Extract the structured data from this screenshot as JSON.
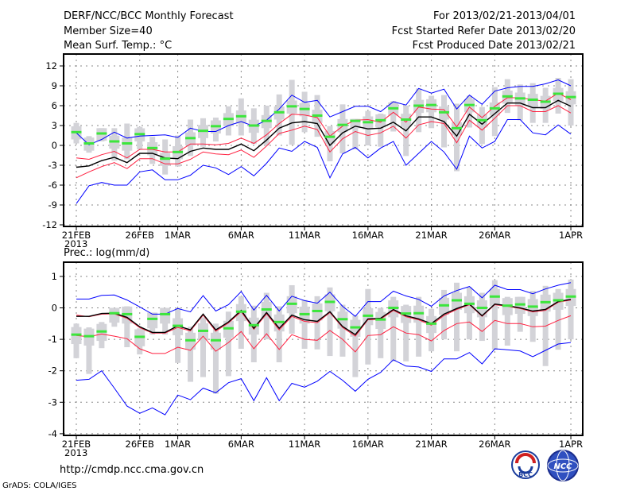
{
  "header": {
    "title": "DERF/NCC/BCC Monthly Forecast",
    "member_size": "Member Size=40",
    "period": "For 2013/02/21-2013/04/01",
    "started": "Fcst Started Refer Date 2013/02/20",
    "produced": "Fcst Produced Date 2013/02/21"
  },
  "footer": {
    "url": "http://cmdp.ncc.cma.gov.cn",
    "credit": "GrADS: COLA/IGES",
    "logo_bcc": "BCC",
    "logo_ncc": "NCC"
  },
  "colors": {
    "green": "#3ce63c",
    "gray": "#d3d3d8",
    "red": "#ff2040",
    "blue": "#0000ff",
    "black": "#000000"
  },
  "chart_data": [
    {
      "type": "line",
      "title": "Mean Surf. Temp.: °C",
      "ylim": [
        -12,
        12
      ],
      "yticks": [
        -12,
        -9,
        -6,
        -3,
        0,
        3,
        6,
        9,
        12
      ],
      "ytick_labels": [
        "-12",
        "-9",
        "-6",
        "-3",
        "0",
        "3",
        "6",
        "9",
        "12"
      ],
      "xticks": [
        {
          "day": 0,
          "label": "21FEB",
          "sub": "2013"
        },
        {
          "day": 5,
          "label": "26FEB"
        },
        {
          "day": 8,
          "label": "1MAR"
        },
        {
          "day": 13,
          "label": "6MAR"
        },
        {
          "day": 18,
          "label": "11MAR"
        },
        {
          "day": 23,
          "label": "16MAR"
        },
        {
          "day": 28,
          "label": "21MAR"
        },
        {
          "day": 33,
          "label": "26MAR"
        },
        {
          "day": 39,
          "label": "1APR"
        }
      ],
      "grid": true,
      "series": [
        {
          "name": "blue-upper",
          "color": "blue",
          "values": [
            1.9,
            0.1,
            0.9,
            2.0,
            1.1,
            1.4,
            1.5,
            1.6,
            1.2,
            2.6,
            2.1,
            2.1,
            3.0,
            3.6,
            2.9,
            3.8,
            5.5,
            7.6,
            6.5,
            6.8,
            4.3,
            5.1,
            5.9,
            5.9,
            5.1,
            6.6,
            6.1,
            8.6,
            7.9,
            8.5,
            5.5,
            7.6,
            6.2,
            8.2,
            8.7,
            8.9,
            8.9,
            9.3,
            9.9,
            9.0
          ]
        },
        {
          "name": "red-upper",
          "color": "red",
          "values": [
            -1.9,
            -2.1,
            -1.4,
            -0.9,
            -1.9,
            -0.6,
            -0.6,
            -1.0,
            -1.0,
            0.2,
            0.2,
            0.1,
            0.3,
            1.1,
            0.3,
            1.6,
            3.3,
            4.7,
            4.6,
            4.2,
            1.4,
            2.9,
            3.8,
            3.9,
            3.5,
            5.0,
            3.5,
            5.8,
            5.5,
            5.4,
            2.8,
            5.8,
            4.2,
            5.9,
            7.2,
            7.2,
            6.9,
            6.7,
            7.9,
            6.9
          ]
        },
        {
          "name": "ensemble-mean",
          "color": "black",
          "values": [
            -3.3,
            -3.1,
            -2.3,
            -1.8,
            -2.6,
            -1.2,
            -1.2,
            -1.9,
            -2.0,
            -0.9,
            -0.4,
            -0.6,
            -0.6,
            0.2,
            -0.8,
            0.8,
            2.6,
            3.4,
            3.6,
            3.3,
            0.0,
            1.9,
            2.9,
            2.5,
            2.6,
            3.5,
            2.2,
            4.3,
            4.3,
            3.6,
            1.4,
            4.7,
            3.2,
            4.8,
            6.4,
            6.4,
            5.7,
            5.7,
            6.8,
            5.9
          ]
        },
        {
          "name": "red-lower",
          "color": "red",
          "values": [
            -4.9,
            -4.0,
            -3.2,
            -2.6,
            -3.5,
            -2.0,
            -2.0,
            -2.8,
            -2.8,
            -2.1,
            -1.0,
            -1.3,
            -1.4,
            -0.7,
            -1.8,
            -0.1,
            1.8,
            2.3,
            2.9,
            2.4,
            -1.0,
            1.0,
            2.1,
            1.5,
            1.9,
            2.9,
            1.1,
            3.1,
            3.6,
            3.3,
            0.4,
            3.8,
            2.3,
            4.1,
            6.0,
            6.0,
            5.1,
            5.1,
            6.0,
            4.9
          ]
        },
        {
          "name": "blue-lower",
          "color": "blue",
          "values": [
            -8.8,
            -6.1,
            -5.6,
            -6.0,
            -6.0,
            -4.0,
            -3.7,
            -5.2,
            -5.2,
            -4.5,
            -3.0,
            -3.4,
            -4.4,
            -3.2,
            -4.6,
            -2.7,
            -0.4,
            -0.9,
            0.6,
            -0.3,
            -4.9,
            -1.3,
            -0.3,
            -1.9,
            -0.4,
            0.6,
            -3.0,
            -1.2,
            0.6,
            -1.0,
            -3.6,
            1.4,
            -0.4,
            0.6,
            3.9,
            3.9,
            1.9,
            1.6,
            3.1,
            1.7
          ]
        }
      ],
      "green_marks": [
        2.0,
        0.3,
        1.8,
        0.6,
        0.3,
        1.7,
        -0.4,
        -2.0,
        -1.0,
        1.1,
        2.2,
        2.9,
        4.0,
        4.4,
        3.0,
        3.7,
        5.0,
        5.9,
        5.5,
        4.5,
        1.3,
        3.1,
        3.7,
        3.5,
        3.8,
        5.6,
        3.9,
        6.0,
        6.1,
        5.0,
        2.6,
        6.1,
        3.8,
        5.6,
        7.4,
        7.1,
        6.9,
        6.6,
        7.8,
        7.3
      ],
      "whisker_low": [
        0.3,
        -1.1,
        0.6,
        -2.3,
        -2.1,
        -0.6,
        -2.8,
        -4.4,
        -3.2,
        -1.6,
        -0.2,
        0.6,
        1.5,
        1.5,
        0.2,
        0.0,
        1.5,
        0.1,
        2.0,
        1.3,
        -2.4,
        -1.2,
        -0.6,
        0.0,
        -0.2,
        2.1,
        -1.6,
        2.0,
        2.6,
        -0.3,
        -3.9,
        2.7,
        0.2,
        1.4,
        4.9,
        3.8,
        3.4,
        3.4,
        4.8,
        3.0
      ],
      "whisker_high": [
        3.4,
        1.4,
        2.6,
        2.6,
        3.3,
        2.8,
        1.3,
        0.9,
        1.5,
        3.9,
        4.1,
        4.2,
        5.9,
        7.1,
        5.6,
        6.0,
        7.7,
        9.9,
        8.1,
        7.6,
        2.9,
        6.2,
        4.0,
        5.2,
        4.8,
        6.7,
        6.0,
        8.6,
        7.5,
        7.6,
        6.3,
        7.5,
        5.8,
        8.8,
        10.0,
        9.2,
        9.4,
        8.7,
        10.2,
        10.0
      ]
    },
    {
      "type": "line",
      "title": "Prec.: log(mm/d)",
      "ylim": [
        -4,
        1.5
      ],
      "yticks": [
        -4,
        -3,
        -2,
        -1,
        0,
        1
      ],
      "ytick_labels": [
        "-4",
        "-3",
        "-2",
        "-1",
        "0",
        "1"
      ],
      "xticks": [
        {
          "day": 0,
          "label": "21FEB",
          "sub": "2013"
        },
        {
          "day": 5,
          "label": "26FEB"
        },
        {
          "day": 8,
          "label": "1MAR"
        },
        {
          "day": 13,
          "label": "6MAR"
        },
        {
          "day": 18,
          "label": "11MAR"
        },
        {
          "day": 23,
          "label": "16MAR"
        },
        {
          "day": 28,
          "label": "21MAR"
        },
        {
          "day": 33,
          "label": "26MAR"
        },
        {
          "day": 39,
          "label": "1APR"
        }
      ],
      "grid": true,
      "series": [
        {
          "name": "blue-upper",
          "color": "blue",
          "values": [
            0.28,
            0.28,
            0.4,
            0.41,
            0.25,
            0.03,
            -0.2,
            -0.2,
            -0.02,
            -0.13,
            0.39,
            -0.1,
            0.1,
            0.52,
            -0.07,
            0.4,
            -0.1,
            0.37,
            0.23,
            0.15,
            0.5,
            0.05,
            -0.27,
            0.2,
            0.2,
            0.53,
            0.38,
            0.27,
            0.05,
            0.38,
            0.55,
            0.68,
            0.32,
            0.72,
            0.58,
            0.58,
            0.45,
            0.6,
            0.72,
            0.8
          ]
        },
        {
          "name": "red-upper",
          "color": "red",
          "values": [
            -0.23,
            -0.28,
            -0.2,
            -0.19,
            -0.33,
            -0.63,
            -0.8,
            -0.8,
            -0.62,
            -0.73,
            -0.23,
            -0.74,
            -0.48,
            -0.12,
            -0.68,
            -0.19,
            -0.7,
            -0.27,
            -0.43,
            -0.47,
            -0.15,
            -0.62,
            -0.9,
            -0.38,
            -0.36,
            -0.08,
            -0.28,
            -0.38,
            -0.55,
            -0.24,
            -0.05,
            0.1,
            -0.27,
            0.1,
            0.05,
            -0.02,
            -0.13,
            -0.08,
            0.18,
            0.25
          ]
        },
        {
          "name": "ensemble-mean",
          "color": "black",
          "values": [
            -0.27,
            -0.27,
            -0.18,
            -0.17,
            -0.3,
            -0.6,
            -0.78,
            -0.78,
            -0.57,
            -0.7,
            -0.2,
            -0.7,
            -0.45,
            -0.08,
            -0.65,
            -0.15,
            -0.65,
            -0.23,
            -0.38,
            -0.43,
            -0.12,
            -0.59,
            -0.85,
            -0.35,
            -0.33,
            -0.05,
            -0.25,
            -0.35,
            -0.5,
            -0.2,
            -0.02,
            0.12,
            -0.25,
            0.12,
            0.07,
            0.0,
            -0.1,
            -0.05,
            0.2,
            0.27
          ]
        },
        {
          "name": "red-lower",
          "color": "red",
          "values": [
            -0.88,
            -0.92,
            -0.83,
            -0.9,
            -0.98,
            -1.3,
            -1.45,
            -1.45,
            -1.25,
            -1.35,
            -0.9,
            -1.38,
            -1.1,
            -0.75,
            -1.3,
            -0.82,
            -1.32,
            -0.85,
            -1.0,
            -1.03,
            -0.72,
            -1.0,
            -1.4,
            -0.88,
            -0.85,
            -0.6,
            -0.8,
            -0.85,
            -1.05,
            -0.72,
            -0.5,
            -0.45,
            -0.75,
            -0.4,
            -0.5,
            -0.5,
            -0.6,
            -0.58,
            -0.4,
            -0.25
          ]
        },
        {
          "name": "blue-lower",
          "color": "blue",
          "values": [
            -2.3,
            -2.27,
            -2.0,
            -2.55,
            -3.12,
            -3.35,
            -3.18,
            -3.4,
            -2.77,
            -2.92,
            -2.55,
            -2.7,
            -2.38,
            -2.25,
            -2.95,
            -2.22,
            -2.95,
            -2.4,
            -2.52,
            -2.33,
            -2.02,
            -2.3,
            -2.65,
            -2.27,
            -2.05,
            -1.65,
            -1.85,
            -1.88,
            -2.02,
            -1.62,
            -1.62,
            -1.42,
            -1.78,
            -1.3,
            -1.33,
            -1.37,
            -1.55,
            -1.35,
            -1.15,
            -1.1
          ]
        }
      ],
      "green_marks": [
        -0.85,
        -0.9,
        -0.75,
        -0.17,
        -0.2,
        -0.92,
        -0.35,
        -0.2,
        -0.57,
        -1.03,
        -0.73,
        -1.03,
        -0.65,
        -0.12,
        -0.55,
        -0.05,
        -0.45,
        0.13,
        -0.2,
        -0.1,
        0.19,
        -0.36,
        -0.62,
        -0.25,
        -0.37,
        0.0,
        -0.18,
        -0.17,
        -0.5,
        0.08,
        0.24,
        0.13,
        0.0,
        0.36,
        0.07,
        0.11,
        0.04,
        0.18,
        0.24,
        0.36
      ],
      "whisker_low": [
        -1.6,
        -2.1,
        -1.28,
        -0.6,
        -1.25,
        -1.48,
        -0.85,
        -0.85,
        -1.75,
        -2.35,
        -2.2,
        -2.73,
        -2.17,
        -1.3,
        -1.73,
        -1.0,
        -1.73,
        -0.82,
        -1.3,
        -1.32,
        -1.53,
        -1.55,
        -2.2,
        -1.8,
        -1.6,
        -1.7,
        -1.7,
        -1.55,
        -1.38,
        -1.0,
        -1.38,
        -1.0,
        -1.05,
        -1.33,
        -1.2,
        -0.76,
        -1.08,
        -1.85,
        -1.33,
        -1.0
      ],
      "whisker_high": [
        -0.5,
        -0.62,
        -0.45,
        0.0,
        0.05,
        -0.65,
        -0.15,
        0.0,
        0.0,
        -0.6,
        -0.3,
        -0.5,
        -0.12,
        0.37,
        0.07,
        0.48,
        0.05,
        0.72,
        0.25,
        0.37,
        0.65,
        0.1,
        -0.24,
        0.6,
        0.0,
        0.35,
        0.1,
        0.35,
        -0.03,
        0.57,
        0.8,
        0.65,
        0.48,
        0.88,
        0.35,
        0.35,
        0.54,
        0.7,
        0.6,
        0.9
      ]
    }
  ]
}
